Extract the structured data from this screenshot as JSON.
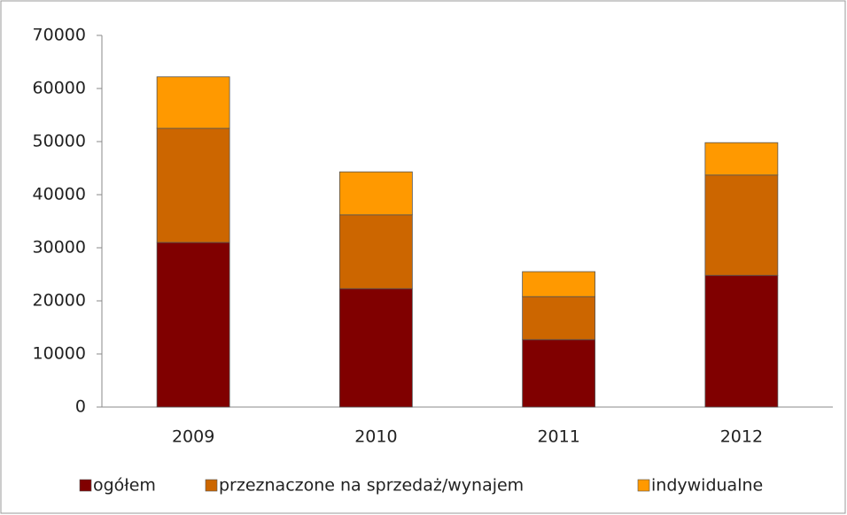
{
  "chart_data": {
    "type": "stacked_bar",
    "categories": [
      "2009",
      "2010",
      "2011",
      "2012"
    ],
    "series": [
      {
        "name": "ogółem",
        "color": "#800000",
        "values": [
          31000,
          22300,
          12700,
          24800
        ]
      },
      {
        "name": "przeznaczone na sprzedaż/wynajem",
        "color": "#cc6600",
        "values": [
          21500,
          13900,
          8100,
          18900
        ]
      },
      {
        "name": "indywidualne",
        "color": "#ff9900",
        "values": [
          9700,
          8100,
          4700,
          6100
        ]
      }
    ],
    "ylim": [
      0,
      70000
    ],
    "yticks": [
      0,
      10000,
      20000,
      30000,
      40000,
      50000,
      60000,
      70000
    ],
    "grid": false,
    "legend": "bottom"
  }
}
